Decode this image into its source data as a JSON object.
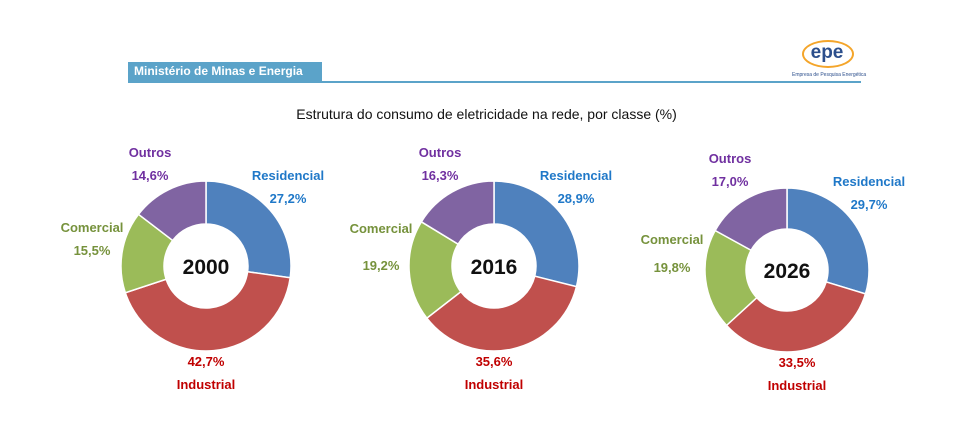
{
  "header": {
    "ministry": "Ministério de Minas e Energia"
  },
  "logo": {
    "text": "epe",
    "subtitle": "Empresa de Pesquisa Energética"
  },
  "colors": {
    "Residencial": "#4f81bd",
    "Industrial": "#c0504d",
    "Comercial": "#9bbb59",
    "Outros": "#8064a2",
    "label_Residencial": "#1f78c8",
    "label_Industrial": "#c00000",
    "label_Comercial": "#76923c",
    "label_Outros": "#7030a0"
  },
  "chart_data": {
    "type": "pie",
    "title": "Estrutura do consumo de eletricidade na rede, por classe (%)",
    "categories": [
      "Residencial",
      "Industrial",
      "Comercial",
      "Outros"
    ],
    "series": [
      {
        "name": "2000",
        "values": [
          27.2,
          42.7,
          15.5,
          14.6
        ],
        "labels": [
          "27,2%",
          "42,7%",
          "15,5%",
          "14,6%"
        ]
      },
      {
        "name": "2016",
        "values": [
          28.9,
          35.6,
          19.2,
          16.3
        ],
        "labels": [
          "28,9%",
          "35,6%",
          "19,2%",
          "16,3%"
        ]
      },
      {
        "name": "2026",
        "values": [
          29.7,
          33.5,
          19.8,
          17.0
        ],
        "labels": [
          "29,7%",
          "33,5%",
          "19,8%",
          "17,0%"
        ]
      }
    ]
  }
}
